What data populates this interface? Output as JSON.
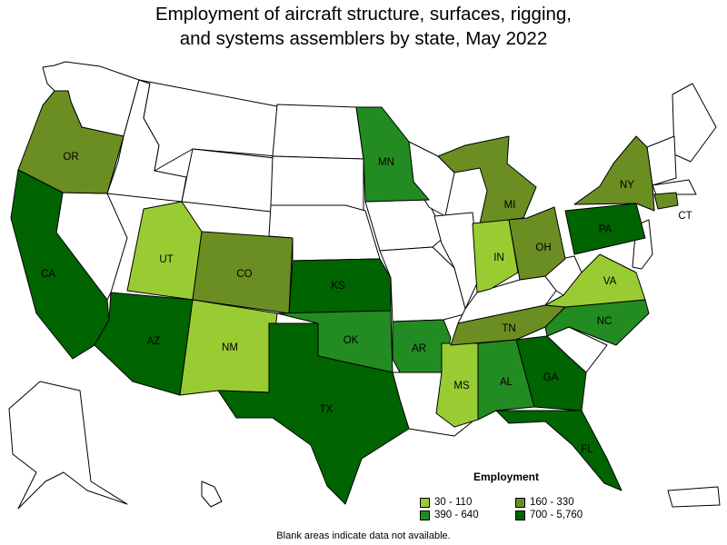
{
  "title_line1": "Employment of aircraft structure, surfaces, rigging,",
  "title_line2": "and systems assemblers by state, May 2022",
  "legend": {
    "title": "Employment",
    "items": [
      {
        "label": "30 - 110",
        "color": "#99cc33"
      },
      {
        "label": "160 - 330",
        "color": "#6b8e23"
      },
      {
        "label": "390 - 640",
        "color": "#228b22"
      },
      {
        "label": "700 - 5,760",
        "color": "#006400"
      }
    ]
  },
  "footnote": "Blank areas indicate data not available.",
  "colors": {
    "c1": "#99cc33",
    "c2": "#6b8e23",
    "c3": "#228b22",
    "c4": "#006400",
    "blank": "#ffffff"
  },
  "states": [
    {
      "abbr": "OR",
      "class": "160 - 330"
    },
    {
      "abbr": "CA",
      "class": "700 - 5,760"
    },
    {
      "abbr": "UT",
      "class": "30 - 110"
    },
    {
      "abbr": "AZ",
      "class": "700 - 5,760"
    },
    {
      "abbr": "CO",
      "class": "160 - 330"
    },
    {
      "abbr": "NM",
      "class": "30 - 110"
    },
    {
      "abbr": "KS",
      "class": "700 - 5,760"
    },
    {
      "abbr": "OK",
      "class": "390 - 640"
    },
    {
      "abbr": "TX",
      "class": "700 - 5,760"
    },
    {
      "abbr": "MN",
      "class": "390 - 640"
    },
    {
      "abbr": "AR",
      "class": "390 - 640"
    },
    {
      "abbr": "MS",
      "class": "30 - 110"
    },
    {
      "abbr": "AL",
      "class": "390 - 640"
    },
    {
      "abbr": "TN",
      "class": "160 - 330"
    },
    {
      "abbr": "MI",
      "class": "160 - 330"
    },
    {
      "abbr": "IN",
      "class": "30 - 110"
    },
    {
      "abbr": "OH",
      "class": "160 - 330"
    },
    {
      "abbr": "GA",
      "class": "700 - 5,760"
    },
    {
      "abbr": "FL",
      "class": "700 - 5,760"
    },
    {
      "abbr": "NC",
      "class": "390 - 640"
    },
    {
      "abbr": "VA",
      "class": "30 - 110"
    },
    {
      "abbr": "PA",
      "class": "700 - 5,760"
    },
    {
      "abbr": "NY",
      "class": "160 - 330"
    },
    {
      "abbr": "CT",
      "class": "160 - 330"
    }
  ]
}
